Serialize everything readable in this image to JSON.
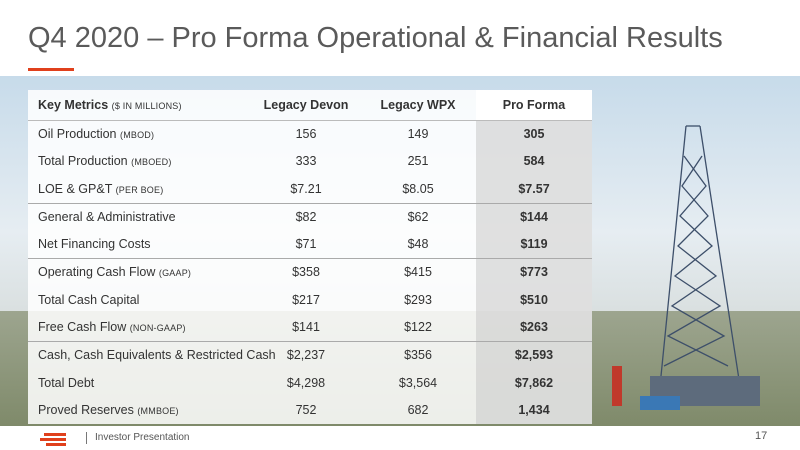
{
  "header": {
    "title": "Q4 2020 – Pro Forma Operational & Financial Results"
  },
  "table": {
    "columns": [
      "Key Metrics",
      "Legacy Devon",
      "Legacy WPX",
      "Pro Forma"
    ],
    "columns_note": "($ IN MILLIONS)",
    "rows": [
      {
        "label": "Oil Production",
        "unit": "(MBOD)",
        "values": [
          "156",
          "149",
          "305"
        ]
      },
      {
        "label": "Total Production",
        "unit": "(MBOED)",
        "values": [
          "333",
          "251",
          "584"
        ]
      },
      {
        "label": "LOE & GP&T",
        "unit": "(PER BOE)",
        "values": [
          "$7.21",
          "$8.05",
          "$7.57"
        ]
      },
      {
        "label": "General & Administrative",
        "values": [
          "$82",
          "$62",
          "$144"
        ]
      },
      {
        "label": "Net Financing Costs",
        "values": [
          "$71",
          "$48",
          "$119"
        ]
      },
      {
        "label": "Operating Cash Flow",
        "unit": "(GAAP)",
        "values": [
          "$358",
          "$415",
          "$773"
        ]
      },
      {
        "label": "Total Cash Capital",
        "values": [
          "$217",
          "$293",
          "$510"
        ]
      },
      {
        "label": "Free Cash Flow",
        "unit": "(NON-GAAP)",
        "values": [
          "$141",
          "$122",
          "$263"
        ]
      },
      {
        "label": "Cash, Cash Equivalents & Restricted Cash",
        "values": [
          "$2,237",
          "$356",
          "$2,593"
        ]
      },
      {
        "label": "Total Debt",
        "values": [
          "$4,298",
          "$3,564",
          "$7,862"
        ]
      },
      {
        "label": "Proved Reserves",
        "unit": "(MMBOE)",
        "values": [
          "752",
          "682",
          "1,434"
        ]
      }
    ]
  },
  "footer": {
    "text": "Investor Presentation",
    "page": "17"
  }
}
